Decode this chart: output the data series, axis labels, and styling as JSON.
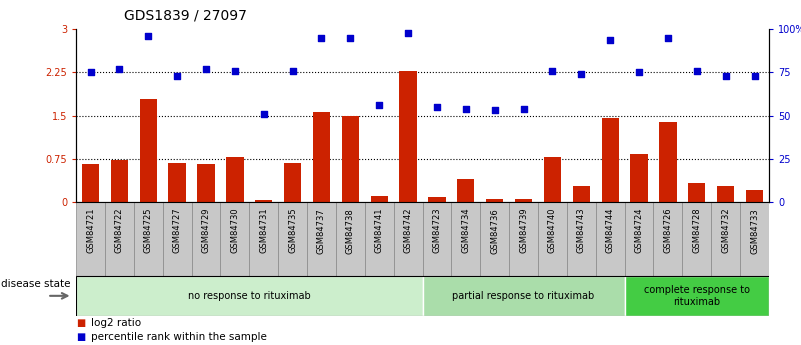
{
  "title": "GDS1839 / 27097",
  "samples": [
    "GSM84721",
    "GSM84722",
    "GSM84725",
    "GSM84727",
    "GSM84729",
    "GSM84730",
    "GSM84731",
    "GSM84735",
    "GSM84737",
    "GSM84738",
    "GSM84741",
    "GSM84742",
    "GSM84723",
    "GSM84734",
    "GSM84736",
    "GSM84739",
    "GSM84740",
    "GSM84743",
    "GSM84744",
    "GSM84724",
    "GSM84726",
    "GSM84728",
    "GSM84732",
    "GSM84733"
  ],
  "log2_ratio": [
    0.65,
    0.72,
    1.78,
    0.68,
    0.65,
    0.78,
    0.04,
    0.68,
    1.57,
    1.5,
    0.1,
    2.28,
    0.08,
    0.4,
    0.05,
    0.05,
    0.78,
    0.28,
    1.45,
    0.83,
    1.38,
    0.32,
    0.28,
    0.2
  ],
  "percentile_rank": [
    75,
    77,
    96,
    73,
    77,
    76,
    51,
    76,
    95,
    95,
    56,
    98,
    55,
    54,
    53,
    54,
    76,
    74,
    94,
    75,
    95,
    76,
    73,
    73
  ],
  "groups": [
    {
      "label": "no response to rituximab",
      "start": 0,
      "end": 12,
      "color": "#cceecc"
    },
    {
      "label": "partial response to rituximab",
      "start": 12,
      "end": 19,
      "color": "#aaddaa"
    },
    {
      "label": "complete response to\nrituximab",
      "start": 19,
      "end": 24,
      "color": "#44cc44"
    }
  ],
  "bar_color": "#cc2200",
  "dot_color": "#0000cc",
  "ylim_left": [
    0,
    3.0
  ],
  "ylim_right": [
    0,
    100
  ],
  "yticks_left": [
    0,
    0.75,
    1.5,
    2.25,
    3.0
  ],
  "ytick_labels_left": [
    "0",
    "0.75",
    "1.5",
    "2.25",
    "3"
  ],
  "yticks_right": [
    0,
    25,
    50,
    75,
    100
  ],
  "ytick_labels_right": [
    "0",
    "25",
    "50",
    "75",
    "100%"
  ],
  "hlines": [
    0.75,
    1.5,
    2.25
  ],
  "legend_items": [
    {
      "label": "log2 ratio",
      "color": "#cc2200"
    },
    {
      "label": "percentile rank within the sample",
      "color": "#0000cc"
    }
  ],
  "disease_state_label": "disease state",
  "gray_box_color": "#c8c8c8",
  "gray_box_border": "#888888"
}
